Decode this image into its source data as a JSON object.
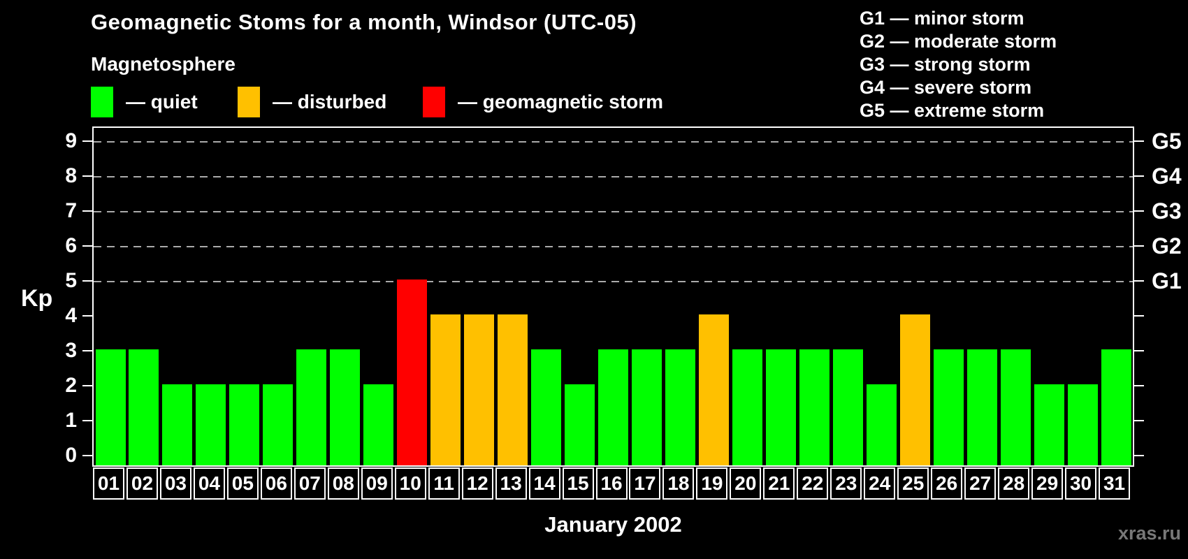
{
  "title": "Geomagnetic Stoms for a month, Windsor (UTC-05)",
  "legend": {
    "heading": "Magnetosphere",
    "items": [
      {
        "label": "— quiet",
        "status": "quiet",
        "color": "#00FF00"
      },
      {
        "label": "— disturbed",
        "status": "disturbed",
        "color": "#FFC000"
      },
      {
        "label": "— geomagnetic storm",
        "status": "storm",
        "color": "#FF0000"
      }
    ]
  },
  "g_scale": {
    "lines": [
      "G1 — minor storm",
      "G2 — moderate storm",
      "G3 — strong storm",
      "G4 — severe storm",
      "G5 — extreme storm"
    ]
  },
  "chart_data": {
    "type": "bar",
    "title": "Geomagnetic Stoms for a month, Windsor (UTC-05)",
    "xlabel": "January 2002",
    "ylabel": "Kp",
    "ylim": [
      0,
      9
    ],
    "yticks": [
      0,
      1,
      2,
      3,
      4,
      5,
      6,
      7,
      8,
      9
    ],
    "gridlines_at": [
      5,
      6,
      7,
      8,
      9
    ],
    "grid": "dashed",
    "legend_position": "top",
    "right_axis_labels": [
      {
        "kp": 5,
        "label": "G1"
      },
      {
        "kp": 6,
        "label": "G2"
      },
      {
        "kp": 7,
        "label": "G3"
      },
      {
        "kp": 8,
        "label": "G4"
      },
      {
        "kp": 9,
        "label": "G5"
      }
    ],
    "categories": [
      "01",
      "02",
      "03",
      "04",
      "05",
      "06",
      "07",
      "08",
      "09",
      "10",
      "11",
      "12",
      "13",
      "14",
      "15",
      "16",
      "17",
      "18",
      "19",
      "20",
      "21",
      "22",
      "23",
      "24",
      "25",
      "26",
      "27",
      "28",
      "29",
      "30",
      "31"
    ],
    "values": [
      3,
      3,
      2,
      2,
      2,
      2,
      3,
      3,
      2,
      5,
      4,
      4,
      4,
      3,
      2,
      3,
      3,
      3,
      4,
      3,
      3,
      3,
      3,
      2,
      4,
      3,
      3,
      3,
      2,
      2,
      3
    ],
    "statuses": [
      "quiet",
      "quiet",
      "quiet",
      "quiet",
      "quiet",
      "quiet",
      "quiet",
      "quiet",
      "quiet",
      "storm",
      "disturbed",
      "disturbed",
      "disturbed",
      "quiet",
      "quiet",
      "quiet",
      "quiet",
      "quiet",
      "disturbed",
      "quiet",
      "quiet",
      "quiet",
      "quiet",
      "quiet",
      "disturbed",
      "quiet",
      "quiet",
      "quiet",
      "quiet",
      "quiet",
      "quiet"
    ],
    "status_colors": {
      "quiet": "#00FF00",
      "disturbed": "#FFC000",
      "storm": "#FF0000"
    },
    "status_rules": {
      "quiet_max_kp": 3,
      "disturbed_kp": 4,
      "storm_min_kp": 5
    }
  },
  "watermark": "xras.ru"
}
